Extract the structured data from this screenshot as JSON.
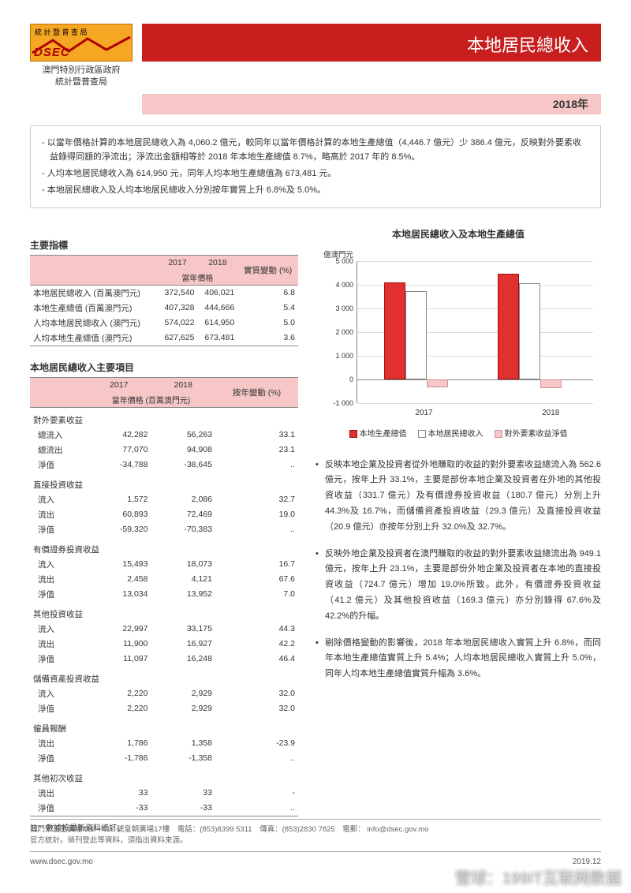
{
  "header": {
    "logo_top_text": "統 計 暨 普 查 局",
    "logo_dsec": "DSEC",
    "org_line1": "澳門特別行政區政府",
    "org_line2": "統計暨普查局",
    "title": "本地居民總收入",
    "year": "2018年"
  },
  "summary": {
    "p1": "- 以當年價格計算的本地居民總收入為 4,060.2 億元，較同年以當年價格計算的本地生產總值（4,446.7 億元）少 386.4 億元，反映對外要素收益錄得同額的淨流出；淨流出金額相等於 2018 年本地生產總值 8.7%，略高於 2017 年的 8.5%。",
    "p2": "- 人均本地居民總收入為 614,950 元，同年人均本地生產總值為 673,481 元。",
    "p3": "- 本地居民總收入及人均本地居民總收入分別按年實質上升 6.8%及 5.0%。"
  },
  "indicators": {
    "title": "主要指標",
    "col_2017": "2017",
    "col_2018": "2018",
    "col_change": "實質變動 (%)",
    "sub_price": "當年價格",
    "rows": [
      {
        "label": "本地居民總收入 (百萬澳門元)",
        "y17": "372,540",
        "y18": "406,021",
        "chg": "6.8"
      },
      {
        "label": "本地生產總值 (百萬澳門元)",
        "y17": "407,328",
        "y18": "444,666",
        "chg": "5.4"
      },
      {
        "label": "人均本地居民總收入 (澳門元)",
        "y17": "574,022",
        "y18": "614,950",
        "chg": "5.0"
      },
      {
        "label": "人均本地生產總值 (澳門元)",
        "y17": "627,625",
        "y18": "673,481",
        "chg": "3.6"
      }
    ]
  },
  "items": {
    "title": "本地居民總收入主要項目",
    "col_2017": "2017",
    "col_2018": "2018",
    "col_change": "按年變動 (%)",
    "sub_price": "當年價格 (百萬澳門元)",
    "groups": [
      {
        "head": "對外要素收益",
        "rows": [
          {
            "label": "總流入",
            "y17": "42,282",
            "y18": "56,263",
            "chg": "33.1"
          },
          {
            "label": "總流出",
            "y17": "77,070",
            "y18": "94,908",
            "chg": "23.1"
          },
          {
            "label": "淨值",
            "y17": "-34,788",
            "y18": "-38,645",
            "chg": ".."
          }
        ]
      },
      {
        "head": "直接投資收益",
        "rows": [
          {
            "label": "流入",
            "y17": "1,572",
            "y18": "2,086",
            "chg": "32.7"
          },
          {
            "label": "流出",
            "y17": "60,893",
            "y18": "72,469",
            "chg": "19.0"
          },
          {
            "label": "淨值",
            "y17": "-59,320",
            "y18": "-70,383",
            "chg": ".."
          }
        ]
      },
      {
        "head": "有價證券投資收益",
        "rows": [
          {
            "label": "流入",
            "y17": "15,493",
            "y18": "18,073",
            "chg": "16.7"
          },
          {
            "label": "流出",
            "y17": "2,458",
            "y18": "4,121",
            "chg": "67.6"
          },
          {
            "label": "淨值",
            "y17": "13,034",
            "y18": "13,952",
            "chg": "7.0"
          }
        ]
      },
      {
        "head": "其他投資收益",
        "rows": [
          {
            "label": "流入",
            "y17": "22,997",
            "y18": "33,175",
            "chg": "44.3"
          },
          {
            "label": "流出",
            "y17": "11,900",
            "y18": "16,927",
            "chg": "42.2"
          },
          {
            "label": "淨值",
            "y17": "11,097",
            "y18": "16,248",
            "chg": "46.4"
          }
        ]
      },
      {
        "head": "儲備資產投資收益",
        "rows": [
          {
            "label": "流入",
            "y17": "2,220",
            "y18": "2,929",
            "chg": "32.0"
          },
          {
            "label": "淨值",
            "y17": "2,220",
            "y18": "2,929",
            "chg": "32.0"
          }
        ]
      },
      {
        "head": "僱員報酬",
        "rows": [
          {
            "label": "流出",
            "y17": "1,786",
            "y18": "1,358",
            "chg": "-23.9"
          },
          {
            "label": "淨值",
            "y17": "-1,786",
            "y18": "-1,358",
            "chg": ".."
          }
        ]
      },
      {
        "head": "其他初次收益",
        "rows": [
          {
            "label": "流出",
            "y17": "33",
            "y18": "33",
            "chg": "-"
          },
          {
            "label": "淨值",
            "y17": "-33",
            "y18": "-33",
            "chg": ".."
          }
        ]
      }
    ],
    "note": "註：數據按最新資料修訂。"
  },
  "chart": {
    "title": "本地居民總收入及本地生產總值",
    "unit": "億澳門元",
    "type": "bar",
    "y_min": -1000,
    "y_max": 5000,
    "y_step": 1000,
    "y_ticks": [
      "5 000",
      "4 000",
      "3 000",
      "2 000",
      "1 000",
      "0",
      "-1 000"
    ],
    "categories": [
      "2017",
      "2018"
    ],
    "series": [
      {
        "name": "本地生產總值",
        "values": [
          4073,
          4447
        ],
        "color": "#e03030",
        "class": "bar-red"
      },
      {
        "name": "本地居民總收入",
        "values": [
          3725,
          4060
        ],
        "color": "#ffffff",
        "class": "bar-white"
      },
      {
        "name": "對外要素收益淨值",
        "values": [
          -348,
          -386
        ],
        "color": "#f7c6c6",
        "class": "bar-pink"
      }
    ]
  },
  "bullets": {
    "p1": "反映本地企業及投資者從外地賺取的收益的對外要素收益總流入為 562.6 億元，按年上升 33.1%，主要是部份本地企業及投資者在外地的其他投資收益（331.7 億元）及有價證券投資收益（180.7 億元）分別上升 44.3%及 16.7%，而儲備資產投資收益（29.3 億元）及直接投資收益（20.9 億元）亦按年分別上升 32.0%及 32.7%。",
    "p2": "反映外地企業及投資者在澳門賺取的收益的對外要素收益總流出為 949.1 億元，按年上升 23.1%，主要是部份外地企業及投資者在本地的直接投資收益（724.7 億元）增加 19.0%所致。此外，有價證券投資收益（41.2 億元）及其他投資收益（169.3 億元）亦分別錄得 67.6%及 42.2%的升幅。",
    "p3": "剔除價格變動的影響後，2018 年本地居民總收入實質上升 6.8%，而同年本地生產總值實質上升 5.4%；人均本地居民總收入實質上升 5.0%，同年人均本地生產總值實質升幅為 3.6%。"
  },
  "footer": {
    "line1": "澳門宋玉生廣場411—417 號皇朝廣場17樓　電話：(853)8399 5311　傳真：(853)2830 7825　電郵： info@dsec.gov.mo",
    "line2": "官方統計。倘刊登此等資料，須指出資料來源。",
    "url": "www.dsec.gov.mo",
    "date": "2019.12"
  },
  "watermark": "雪球：199IT互联网数据"
}
